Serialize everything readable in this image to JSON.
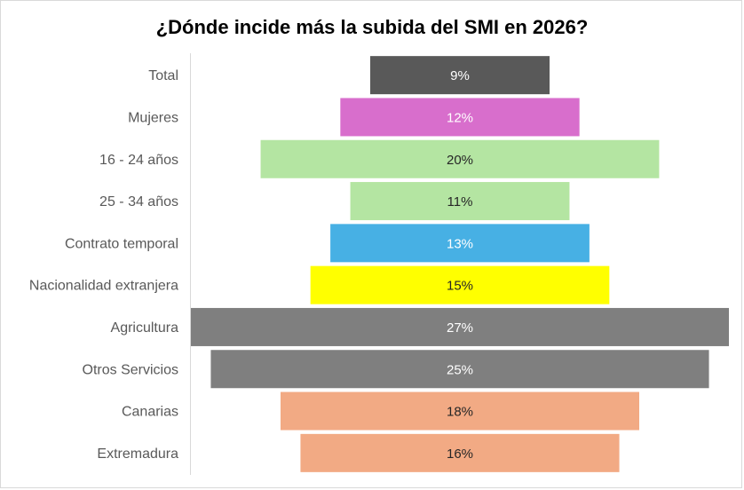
{
  "chart_data": {
    "type": "bar",
    "orientation": "horizontal-centered",
    "title": "¿Dónde incide más la subida del SMI en 2026?",
    "xlabel": "",
    "ylabel": "",
    "categories": [
      "Total",
      "Mujeres",
      "16 - 24 años",
      "25 - 34 años",
      "Contrato temporal",
      "Nacionalidad extranjera",
      "Agricultura",
      "Otros Servicios",
      "Canarias",
      "Extremadura"
    ],
    "values": [
      9,
      12,
      20,
      11,
      13,
      15,
      27,
      25,
      18,
      16
    ],
    "value_labels": [
      "9%",
      "12%",
      "20%",
      "11%",
      "13%",
      "15%",
      "27%",
      "25%",
      "18%",
      "16%"
    ],
    "colors": [
      "#595959",
      "#d86ecc",
      "#b4e5a2",
      "#b4e5a2",
      "#47b0e4",
      "#ffff00",
      "#7f7f7f",
      "#7f7f7f",
      "#f2aa84",
      "#f2aa84"
    ],
    "label_colors": [
      "#ffffff",
      "#ffffff",
      "#262626",
      "#262626",
      "#ffffff",
      "#262626",
      "#ffffff",
      "#ffffff",
      "#262626",
      "#262626"
    ],
    "xlim": [
      0,
      27
    ],
    "grid": false,
    "legend": "none"
  }
}
